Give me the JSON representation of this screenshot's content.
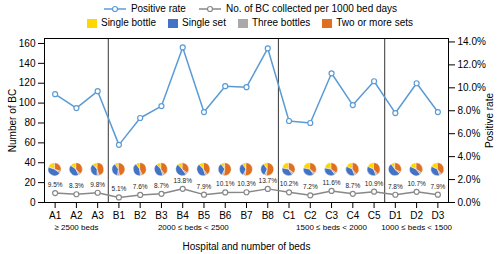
{
  "chart_data": {
    "type": "line",
    "xlabel": "Hospital and number of beds",
    "ylabel": "Number of BC",
    "y2label": "Positive rate",
    "categories": [
      "A1",
      "A2",
      "A3",
      "B1",
      "B2",
      "B3",
      "B4",
      "B5",
      "B6",
      "B7",
      "B8",
      "C1",
      "C2",
      "C3",
      "C4",
      "C5",
      "D1",
      "D2",
      "D3"
    ],
    "series": [
      {
        "name": "Positive rate",
        "color": "#5B9BD5",
        "marker": "circle",
        "line_style": "solid",
        "values": [
          109,
          95,
          112,
          58,
          85,
          97,
          156,
          91,
          117,
          116,
          155,
          82,
          80,
          130,
          98,
          122,
          90,
          120,
          91
        ]
      },
      {
        "name": "No. of BC collected per 1000 bed days",
        "color": "#888888",
        "marker": "circle",
        "line_style": "solid",
        "data_labels": true,
        "values": [
          9.5,
          8.3,
          9.8,
          5.1,
          7.6,
          8.7,
          13.8,
          7.9,
          10.1,
          10.3,
          13.7,
          10.2,
          7.2,
          11.6,
          8.7,
          10.9,
          7.8,
          10.7,
          7.9
        ],
        "value_labels": [
          "9.5%",
          "8.3%",
          "9.8%",
          "5.1%",
          "7.6%",
          "8.7%",
          "13.8%",
          "7.9%",
          "10.1%",
          "10.3%",
          "13.7%",
          "10.2%",
          "7.2%",
          "11.6%",
          "8.7%",
          "10.9%",
          "7.8%",
          "10.7%",
          "7.9%"
        ]
      }
    ],
    "ylim": [
      0,
      165
    ],
    "yticks": [
      0,
      20,
      40,
      60,
      80,
      100,
      120,
      140,
      160
    ],
    "y2lim": [
      0.0,
      14.3
    ],
    "y2ticks": [
      {
        "value": 0.0,
        "label": "0.0%"
      },
      {
        "value": 2.0,
        "label": "2.0%"
      },
      {
        "value": 4.0,
        "label": "4.0%"
      },
      {
        "value": 6.0,
        "label": "6.0%"
      },
      {
        "value": 8.0,
        "label": "8.0%"
      },
      {
        "value": 10.0,
        "label": "10.0%"
      },
      {
        "value": 12.0,
        "label": "12.0%"
      },
      {
        "value": 14.0,
        "label": "14.0%"
      }
    ],
    "groups": [
      {
        "label": "≥ 2500 beds",
        "start": "A1",
        "end": "A3"
      },
      {
        "label": "2000 ≤ beds < 2500",
        "start": "B1",
        "end": "B8"
      },
      {
        "label": "1500 ≤ beds < 2000",
        "start": "C1",
        "end": "C5"
      },
      {
        "label": "1000 ≤ beds < 1500",
        "start": "D1",
        "end": "D3"
      }
    ],
    "pies": {
      "labels": [
        "Single bottle",
        "Single set",
        "Three bottles",
        "Two or more sets"
      ],
      "colors": [
        "#FFD700",
        "#4472C4",
        "#A9A9A9",
        "#E07020"
      ],
      "values": [
        [
          20,
          45,
          5,
          30
        ],
        [
          15,
          42,
          5,
          38
        ],
        [
          12,
          38,
          5,
          45
        ],
        [
          10,
          38,
          5,
          47
        ],
        [
          10,
          42,
          5,
          43
        ],
        [
          12,
          43,
          5,
          40
        ],
        [
          12,
          48,
          5,
          35
        ],
        [
          12,
          43,
          5,
          40
        ],
        [
          10,
          33,
          5,
          52
        ],
        [
          10,
          33,
          5,
          52
        ],
        [
          10,
          33,
          5,
          52
        ],
        [
          22,
          38,
          5,
          35
        ],
        [
          22,
          38,
          5,
          35
        ],
        [
          22,
          38,
          5,
          35
        ],
        [
          18,
          38,
          5,
          39
        ],
        [
          18,
          38,
          5,
          39
        ],
        [
          10,
          53,
          5,
          32
        ],
        [
          18,
          43,
          5,
          34
        ],
        [
          18,
          38,
          5,
          39
        ]
      ]
    },
    "legend": "top",
    "grid": false
  }
}
